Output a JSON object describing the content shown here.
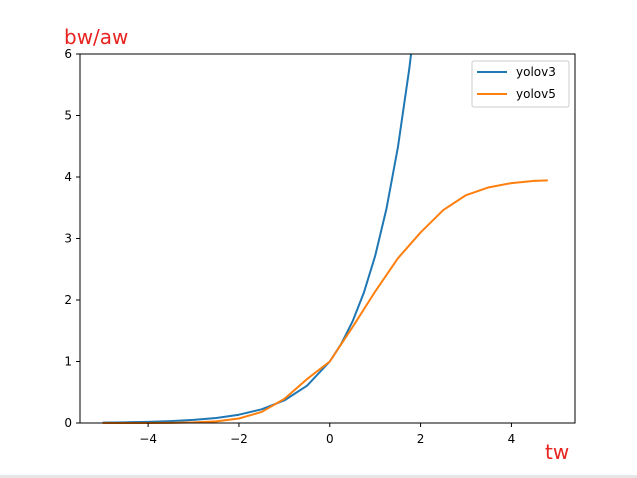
{
  "chart_data": {
    "type": "line",
    "ylabel": "bw/aw",
    "xlabel": "tw",
    "xlim": [
      -5.5,
      5.4
    ],
    "ylim": [
      0,
      6
    ],
    "xticks": [
      -4,
      -2,
      0,
      2,
      4
    ],
    "xtick_labels": [
      "−4",
      "−2",
      "0",
      "2",
      "4"
    ],
    "yticks": [
      0,
      1,
      2,
      3,
      4,
      5,
      6
    ],
    "ytick_labels": [
      "0",
      "1",
      "2",
      "3",
      "4",
      "5",
      "6"
    ],
    "grid": false,
    "legend_position": "top-right",
    "axis_label_color": "#e8231f",
    "series": [
      {
        "name": "yolov3",
        "color": "#1f77b4",
        "x": [
          -5,
          -4.5,
          -4,
          -3.5,
          -3,
          -2.5,
          -2,
          -1.5,
          -1,
          -0.5,
          0,
          0.25,
          0.5,
          0.75,
          1,
          1.25,
          1.5,
          1.75,
          1.79
        ],
        "y": [
          0.007,
          0.011,
          0.018,
          0.03,
          0.05,
          0.082,
          0.135,
          0.223,
          0.368,
          0.607,
          1.0,
          1.284,
          1.649,
          2.117,
          2.718,
          3.49,
          4.482,
          5.755,
          6.0
        ]
      },
      {
        "name": "yolov5",
        "color": "#ff7f0e",
        "x": [
          -5,
          -4.5,
          -4,
          -3.5,
          -3,
          -2.5,
          -2,
          -1.5,
          -1,
          -0.5,
          0,
          0.5,
          1,
          1.5,
          2,
          2.5,
          3,
          3.5,
          4,
          4.5,
          4.8
        ],
        "y": [
          0.0,
          0.0,
          0.001,
          0.003,
          0.01,
          0.027,
          0.073,
          0.18,
          0.393,
          0.714,
          1.0,
          1.557,
          2.138,
          2.678,
          3.098,
          3.463,
          3.705,
          3.832,
          3.901,
          3.937,
          3.945
        ]
      }
    ]
  }
}
